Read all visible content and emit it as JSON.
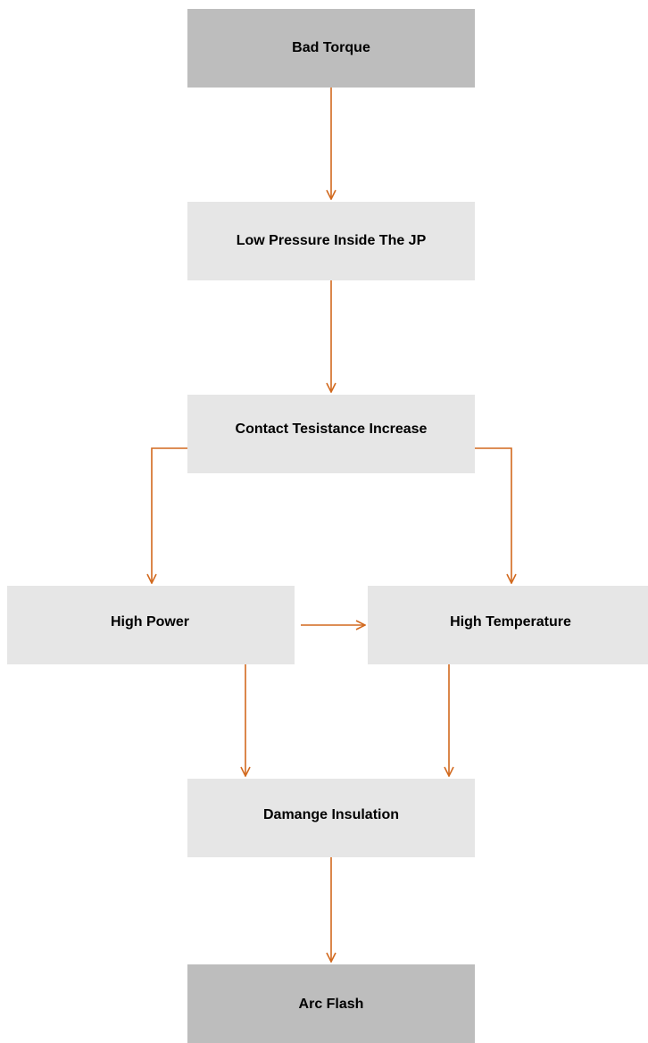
{
  "nodes": [
    {
      "label": "Bad Torque"
    },
    {
      "label": "Low Pressure Inside The JP"
    },
    {
      "label": "Contact Tesistance Increase"
    },
    {
      "label": "High Power"
    },
    {
      "label": "High Temperature"
    },
    {
      "label": "Damange Insulation"
    },
    {
      "label": "Arc Flash"
    }
  ]
}
